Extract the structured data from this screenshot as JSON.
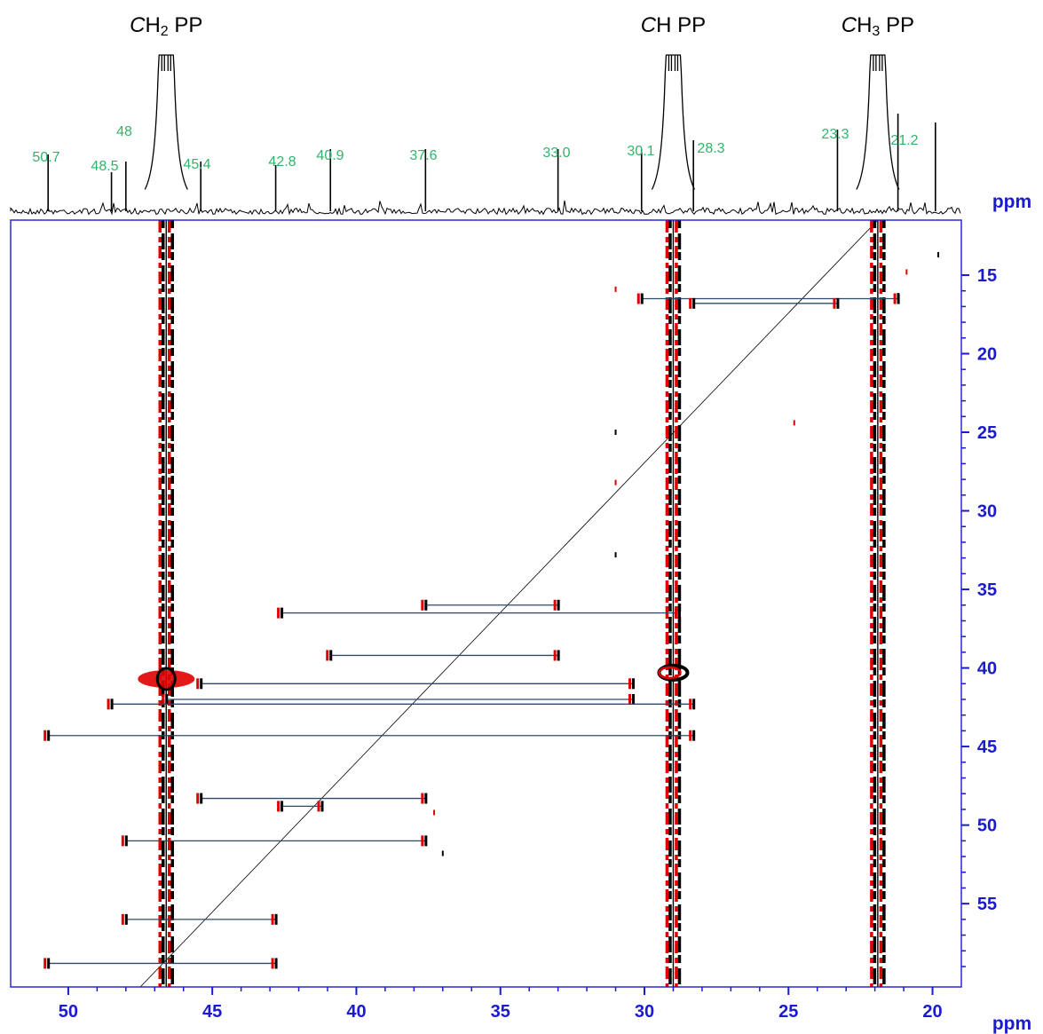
{
  "colors": {
    "axis": "#1a1ad0",
    "peak_label": "#2fb56a",
    "positive_contour": "#000000",
    "negative_contour": "#e00000",
    "correlation_line": "#2d4a6a",
    "spectrum": "#000000"
  },
  "chart_data": {
    "type": "scatter",
    "title": "",
    "group_labels": [
      {
        "id": "ch2",
        "prefix": "C",
        "rest": "H",
        "sub": "2",
        "suffix": " PP",
        "ppm": 46.6
      },
      {
        "id": "ch",
        "prefix": "C",
        "rest": "H",
        "sub": "",
        "suffix": " PP",
        "ppm": 29.0
      },
      {
        "id": "ch3",
        "prefix": "C",
        "rest": "H",
        "sub": "3",
        "suffix": " PP",
        "ppm": 21.9
      }
    ],
    "f2_axis": {
      "unit": "ppm",
      "range": [
        52.0,
        19.0
      ],
      "ticks": [
        "50",
        "45",
        "40",
        "35",
        "30",
        "25",
        "20"
      ]
    },
    "f1_axis": {
      "unit": "ppm",
      "range": [
        11.5,
        60.3
      ],
      "ticks": [
        "15",
        "20",
        "25",
        "30",
        "35",
        "40",
        "45",
        "50",
        "55"
      ]
    },
    "spectrum_peaks": [
      {
        "ppm": 50.7,
        "height": 0.32,
        "label": "50.7"
      },
      {
        "ppm": 48.5,
        "height": 0.22,
        "label": "48.5"
      },
      {
        "ppm": 48.0,
        "height": 0.28,
        "label": "48"
      },
      {
        "ppm": 45.4,
        "height": 0.28,
        "label": "45.4"
      },
      {
        "ppm": 42.8,
        "height": 0.26,
        "label": "42.8"
      },
      {
        "ppm": 40.9,
        "height": 0.35,
        "label": "40.9"
      },
      {
        "ppm": 37.6,
        "height": 0.35,
        "label": "37.6"
      },
      {
        "ppm": 33.0,
        "height": 0.35,
        "label": "33.0"
      },
      {
        "ppm": 30.1,
        "height": 0.35,
        "label": "30.1"
      },
      {
        "ppm": 28.3,
        "height": 0.4,
        "label": "28.3"
      },
      {
        "ppm": 23.3,
        "height": 0.46,
        "label": "23.3"
      },
      {
        "ppm": 21.2,
        "height": 0.55,
        "label": "21.2"
      },
      {
        "ppm": 19.9,
        "height": 0.5,
        "label": ""
      }
    ],
    "main_peaks_ppm": [
      46.6,
      29.0,
      21.9
    ],
    "correlations": [
      {
        "f1": 16.5,
        "from": 30.1,
        "to": 21.2
      },
      {
        "f1": 16.8,
        "from": 28.3,
        "to": 23.3
      },
      {
        "f1": 36.0,
        "from": 37.6,
        "to": 33.0
      },
      {
        "f1": 36.5,
        "from": 42.6,
        "to": 28.8
      },
      {
        "f1": 39.2,
        "from": 40.9,
        "to": 33.0
      },
      {
        "f1": 41.0,
        "from": 45.4,
        "to": 30.4
      },
      {
        "f1": 42.0,
        "from": 46.6,
        "to": 30.4
      },
      {
        "f1": 42.3,
        "from": 48.5,
        "to": 28.3
      },
      {
        "f1": 44.3,
        "from": 50.7,
        "to": 28.3
      },
      {
        "f1": 48.3,
        "from": 45.4,
        "to": 37.6
      },
      {
        "f1": 48.8,
        "from": 42.6,
        "to": 41.2
      },
      {
        "f1": 51.0,
        "from": 48.0,
        "to": 37.6
      },
      {
        "f1": 56.0,
        "from": 48.0,
        "to": 42.8
      },
      {
        "f1": 58.8,
        "from": 50.7,
        "to": 42.8
      }
    ],
    "isolated_spots": [
      {
        "f2": 19.8,
        "f1": 13.7
      },
      {
        "f2": 20.9,
        "f1": 14.8
      },
      {
        "f2": 21.2,
        "f1": 16.3
      },
      {
        "f2": 24.8,
        "f1": 24.4
      },
      {
        "f2": 31.0,
        "f1": 25.0
      },
      {
        "f2": 31.0,
        "f1": 28.2
      },
      {
        "f2": 31.0,
        "f1": 32.8
      },
      {
        "f2": 31.0,
        "f1": 15.9
      },
      {
        "f2": 37.0,
        "f1": 51.8
      },
      {
        "f2": 37.3,
        "f1": 49.2
      }
    ]
  }
}
